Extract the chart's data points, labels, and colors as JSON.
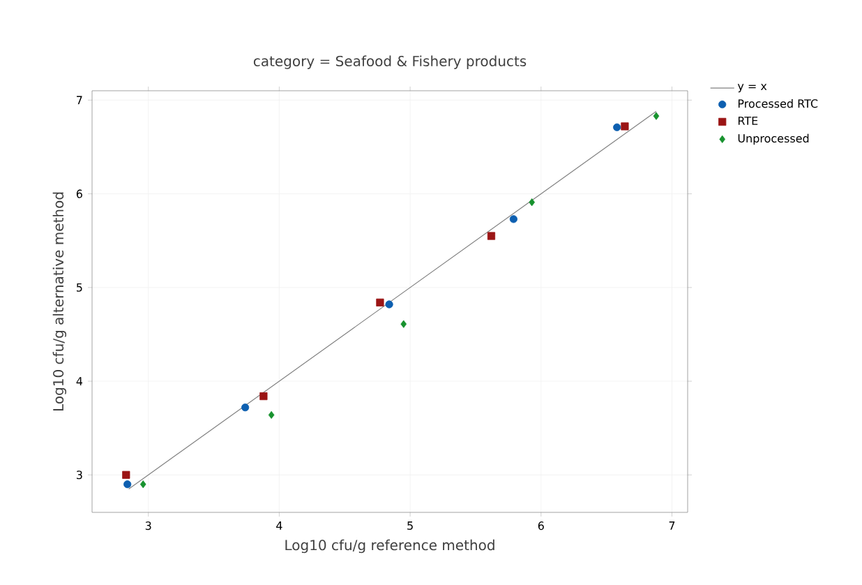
{
  "chart_data": {
    "type": "scatter",
    "title": "category = Seafood & Fishery products",
    "xlabel": "Log10 cfu/g reference method",
    "ylabel": "Log10 cfu/g alternative method",
    "xlim": [
      2.57,
      7.12
    ],
    "ylim": [
      2.6,
      7.1
    ],
    "xticks": [
      3,
      4,
      5,
      6,
      7
    ],
    "yticks": [
      3,
      4,
      5,
      6,
      7
    ],
    "grid": true,
    "legend": "top right",
    "series": [
      {
        "name": "y = x",
        "type": "line",
        "color": "#808080",
        "marker": "none",
        "x": [
          2.85,
          6.88
        ],
        "values": [
          2.85,
          6.88
        ]
      },
      {
        "name": "Processed RTC",
        "color": "#0d5fb0",
        "marker": "circle",
        "x": [
          2.84,
          3.74,
          4.84,
          5.79,
          6.58
        ],
        "values": [
          2.9,
          3.72,
          4.82,
          5.73,
          6.71
        ]
      },
      {
        "name": "RTE",
        "color": "#9b1515",
        "marker": "square",
        "x": [
          2.83,
          3.88,
          4.77,
          5.62,
          6.64
        ],
        "values": [
          3.0,
          3.84,
          4.84,
          5.55,
          6.72
        ]
      },
      {
        "name": "Unprocessed",
        "color": "#17922e",
        "marker": "diamond",
        "x": [
          2.96,
          3.94,
          4.95,
          5.93,
          6.88
        ],
        "values": [
          2.9,
          3.64,
          4.61,
          5.91,
          6.83
        ]
      }
    ]
  }
}
